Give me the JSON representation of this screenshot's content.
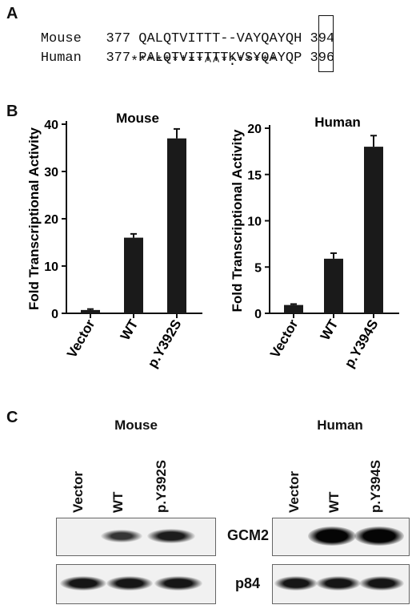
{
  "panel_a": {
    "letter": "A",
    "rows": [
      {
        "species": "Mouse",
        "start": "377",
        "seq_pre": "QALQTVITTT--VAYQAY",
        "highlight": "",
        "seq_post": "QH",
        "end": "394"
      },
      {
        "species": "Human",
        "start": "377",
        "seq_pre": "PALQTVITTTTKVSYQAY",
        "highlight": "",
        "seq_post": "QP",
        "end": "396"
      }
    ],
    "conservation": "*********^^*:*****"
  },
  "panel_b": {
    "letter": "B",
    "y_axis_label": "Fold Transcriptional Activity",
    "colors": {
      "bar": "#1a1a1a"
    },
    "chart_data": [
      {
        "type": "bar",
        "title": "Mouse",
        "categories": [
          "Vector",
          "WT",
          "p.Y392S"
        ],
        "values": [
          0.7,
          16,
          37
        ],
        "errors": [
          0.2,
          0.8,
          2
        ],
        "ylabel": "Fold Transcriptional Activity",
        "ylim": [
          0,
          40
        ],
        "yticks": [
          0,
          10,
          20,
          30,
          40
        ]
      },
      {
        "type": "bar",
        "title": "Human",
        "categories": [
          "Vector",
          "WT",
          "p.Y394S"
        ],
        "values": [
          0.9,
          5.9,
          18
        ],
        "errors": [
          0.1,
          0.6,
          1.2
        ],
        "ylabel": "Fold Transcriptional Activity",
        "ylim": [
          0,
          20
        ],
        "yticks": [
          0,
          5,
          10,
          15,
          20
        ]
      }
    ]
  },
  "panel_c": {
    "letter": "C",
    "blots": [
      {
        "title": "Mouse",
        "lanes": [
          "Vector",
          "WT",
          "p.Y392S"
        ]
      },
      {
        "title": "Human",
        "lanes": [
          "Vector",
          "WT",
          "p.Y394S"
        ]
      }
    ],
    "rows": [
      {
        "label": "GCM2",
        "intensity_mouse": [
          0,
          0.75,
          0.85
        ],
        "intensity_human": [
          0,
          1,
          1
        ]
      },
      {
        "label": "p84",
        "intensity_mouse": [
          0.9,
          0.9,
          0.9
        ],
        "intensity_human": [
          0.9,
          0.9,
          0.9
        ]
      }
    ]
  }
}
